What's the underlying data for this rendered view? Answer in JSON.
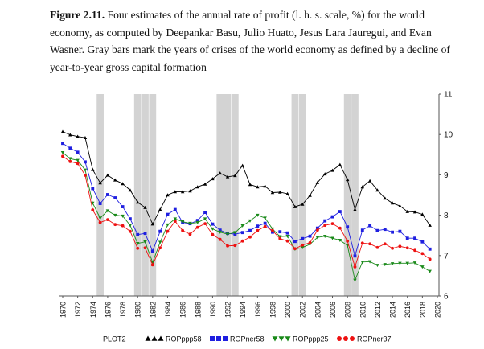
{
  "caption": {
    "figure_label": "Figure 2.11.",
    "text": " Four estimates of the annual rate of profit (l. h. s. scale, %) for the world economy, as computed by Deepankar Basu, Julio Huato, Jesus Lara Jauregui, and Evan Wasner. Gray bars mark the years of crises of the world economy as defined by a decline of year-to-year gross capital formation"
  },
  "chart_data": {
    "type": "line",
    "xlabel": "",
    "ylabel": "",
    "xlim": [
      1970,
      2020
    ],
    "ylim": [
      6,
      11
    ],
    "x_ticks": [
      "1970",
      "1972",
      "1974",
      "1976",
      "1978",
      "1980",
      "1982",
      "1984",
      "1986",
      "1988",
      "1990",
      "1992",
      "1994",
      "1996",
      "1998",
      "2000",
      "2002",
      "2004",
      "2006",
      "2008",
      "2010",
      "2012",
      "2014",
      "2016",
      "2018",
      "2020"
    ],
    "y_ticks": [
      "6",
      "7",
      "8",
      "9",
      "10",
      "11"
    ],
    "y_axis_side": "right",
    "grid": false,
    "crisis_years": [
      1975,
      1980,
      1981,
      1982,
      1991,
      1992,
      1993,
      2001,
      2002,
      2008,
      2009
    ],
    "colors": {
      "crisis_band": "#d3d3d3",
      "ROPppp58": "#000000",
      "ROPner58": "#1f1fe0",
      "ROPppp25": "#1a8a1a",
      "ROPner37": "#ee1111"
    },
    "legend": {
      "position": "bottom",
      "title": "PLOT2",
      "entries": [
        "ROPppp58",
        "ROPner58",
        "ROPppp25",
        "ROPner37"
      ]
    },
    "x": [
      1970,
      1971,
      1972,
      1973,
      1974,
      1975,
      1976,
      1977,
      1978,
      1979,
      1980,
      1981,
      1982,
      1983,
      1984,
      1985,
      1986,
      1987,
      1988,
      1989,
      1990,
      1991,
      1992,
      1993,
      1994,
      1995,
      1996,
      1997,
      1998,
      1999,
      2000,
      2001,
      2002,
      2003,
      2004,
      2005,
      2006,
      2007,
      2008,
      2009,
      2010,
      2011,
      2012,
      2013,
      2014,
      2015,
      2016,
      2017,
      2018,
      2019
    ],
    "series": [
      {
        "name": "ROPppp58",
        "marker": "triangle-up",
        "values": [
          10.07,
          9.99,
          9.95,
          9.92,
          9.13,
          8.8,
          8.99,
          8.87,
          8.78,
          8.62,
          8.32,
          8.19,
          7.78,
          8.14,
          8.5,
          8.58,
          8.58,
          8.6,
          8.7,
          8.77,
          8.9,
          9.04,
          8.95,
          8.98,
          9.23,
          8.76,
          8.7,
          8.72,
          8.56,
          8.57,
          8.53,
          8.21,
          8.27,
          8.49,
          8.81,
          9.02,
          9.11,
          9.25,
          8.88,
          8.14,
          8.7,
          8.85,
          8.62,
          8.42,
          8.3,
          8.23,
          8.09,
          8.08,
          8.02,
          7.75
        ]
      },
      {
        "name": "ROPner58",
        "marker": "square",
        "values": [
          9.78,
          9.66,
          9.56,
          9.32,
          8.66,
          8.29,
          8.51,
          8.43,
          8.21,
          7.91,
          7.52,
          7.55,
          7.11,
          7.6,
          8.02,
          8.14,
          7.82,
          7.79,
          7.87,
          8.07,
          7.78,
          7.63,
          7.55,
          7.53,
          7.57,
          7.62,
          7.73,
          7.8,
          7.58,
          7.59,
          7.56,
          7.35,
          7.42,
          7.48,
          7.68,
          7.86,
          7.96,
          8.09,
          7.71,
          6.99,
          7.63,
          7.74,
          7.62,
          7.65,
          7.58,
          7.6,
          7.43,
          7.43,
          7.34,
          7.16
        ]
      },
      {
        "name": "ROPppp25",
        "marker": "triangle-down",
        "values": [
          9.55,
          9.4,
          9.36,
          9.12,
          8.3,
          7.93,
          8.11,
          8.0,
          7.98,
          7.75,
          7.3,
          7.34,
          6.83,
          7.33,
          7.76,
          7.91,
          7.84,
          7.8,
          7.82,
          7.91,
          7.66,
          7.58,
          7.53,
          7.57,
          7.74,
          7.86,
          8.0,
          7.93,
          7.66,
          7.47,
          7.48,
          7.16,
          7.2,
          7.28,
          7.45,
          7.48,
          7.43,
          7.38,
          7.25,
          6.39,
          6.84,
          6.85,
          6.76,
          6.78,
          6.8,
          6.81,
          6.81,
          6.82,
          6.72,
          6.61
        ]
      },
      {
        "name": "ROPner37",
        "marker": "circle",
        "values": [
          9.46,
          9.33,
          9.28,
          8.99,
          8.13,
          7.82,
          7.89,
          7.77,
          7.74,
          7.6,
          7.18,
          7.19,
          6.77,
          7.19,
          7.6,
          7.85,
          7.62,
          7.53,
          7.7,
          7.79,
          7.52,
          7.4,
          7.24,
          7.25,
          7.36,
          7.46,
          7.62,
          7.72,
          7.62,
          7.42,
          7.36,
          7.17,
          7.26,
          7.32,
          7.63,
          7.75,
          7.79,
          7.68,
          7.36,
          6.72,
          7.31,
          7.29,
          7.2,
          7.29,
          7.18,
          7.23,
          7.19,
          7.13,
          7.05,
          6.91
        ]
      }
    ]
  }
}
